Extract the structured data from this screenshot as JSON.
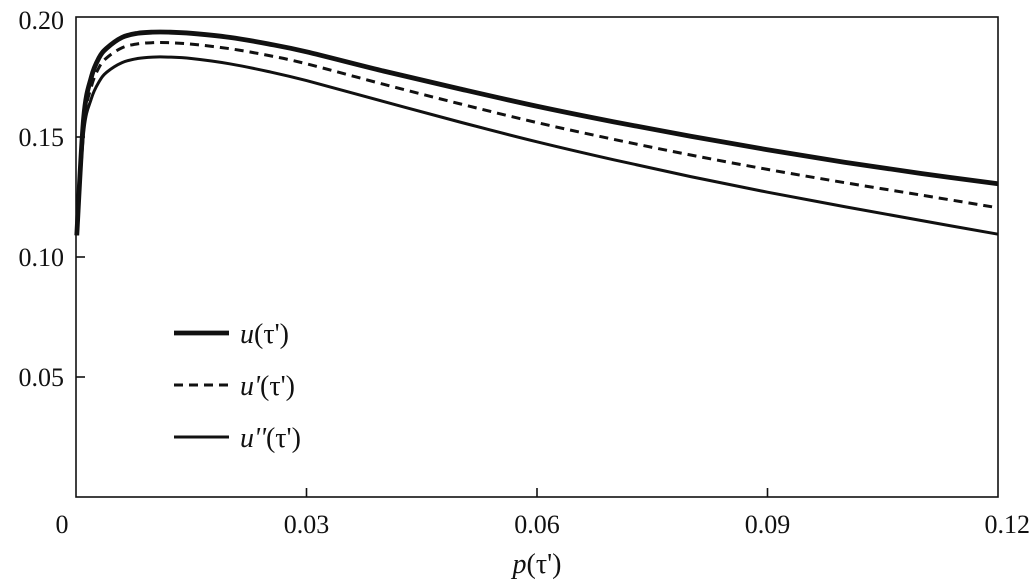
{
  "chart_data": {
    "type": "line",
    "title": "",
    "xlabel": "p(τ')",
    "xlabel_var": "p",
    "xlabel_arg": "(τ')",
    "ylabel": "",
    "xlim": [
      0,
      0.12
    ],
    "ylim": [
      0,
      0.2
    ],
    "xticks": [
      0,
      0.03,
      0.06,
      0.09,
      0.12
    ],
    "xtick_labels": [
      "0",
      "0.03",
      "0.06",
      "0.09",
      "0.12"
    ],
    "yticks": [
      0.05,
      0.1,
      0.15,
      0.2
    ],
    "ytick_labels": [
      "0.05",
      "0.10",
      "0.15",
      "0.20"
    ],
    "grid": false,
    "legend_position": "lower-left",
    "series": [
      {
        "name": "u(τ')",
        "var": "u",
        "arg": "(τ')",
        "style": "solid-thick",
        "color": "#111111",
        "x": [
          0.0001,
          0.001,
          0.002,
          0.003,
          0.004,
          0.006,
          0.008,
          0.01,
          0.012,
          0.015,
          0.02,
          0.025,
          0.03,
          0.04,
          0.05,
          0.06,
          0.07,
          0.08,
          0.09,
          0.1,
          0.11,
          0.12
        ],
        "y": [
          0.109,
          0.158,
          0.175,
          0.183,
          0.187,
          0.1915,
          0.1932,
          0.1937,
          0.1937,
          0.1932,
          0.1915,
          0.1888,
          0.1855,
          0.1775,
          0.17,
          0.1628,
          0.1563,
          0.1503,
          0.1447,
          0.1395,
          0.1348,
          0.1305
        ]
      },
      {
        "name": "u'(τ')",
        "var": "u'",
        "arg": "(τ')",
        "style": "dashed",
        "color": "#111111",
        "x": [
          0.0001,
          0.001,
          0.002,
          0.003,
          0.004,
          0.006,
          0.008,
          0.01,
          0.012,
          0.015,
          0.02,
          0.025,
          0.03,
          0.04,
          0.05,
          0.06,
          0.07,
          0.08,
          0.09,
          0.1,
          0.11,
          0.12
        ],
        "y": [
          0.109,
          0.155,
          0.171,
          0.179,
          0.183,
          0.1872,
          0.1888,
          0.1893,
          0.1893,
          0.1887,
          0.1868,
          0.184,
          0.1805,
          0.172,
          0.1638,
          0.156,
          0.149,
          0.1425,
          0.1365,
          0.131,
          0.1258,
          0.1205
        ]
      },
      {
        "name": "u''(τ')",
        "var": "u''",
        "arg": "(τ')",
        "style": "solid",
        "color": "#111111",
        "x": [
          0.0001,
          0.001,
          0.002,
          0.003,
          0.004,
          0.006,
          0.008,
          0.01,
          0.012,
          0.015,
          0.02,
          0.025,
          0.03,
          0.04,
          0.05,
          0.06,
          0.07,
          0.08,
          0.09,
          0.1,
          0.11,
          0.12
        ],
        "y": [
          0.109,
          0.152,
          0.166,
          0.173,
          0.177,
          0.181,
          0.1827,
          0.1833,
          0.1833,
          0.1827,
          0.1805,
          0.1773,
          0.1735,
          0.1648,
          0.1562,
          0.148,
          0.1405,
          0.1335,
          0.127,
          0.121,
          0.1152,
          0.1095
        ]
      }
    ]
  }
}
